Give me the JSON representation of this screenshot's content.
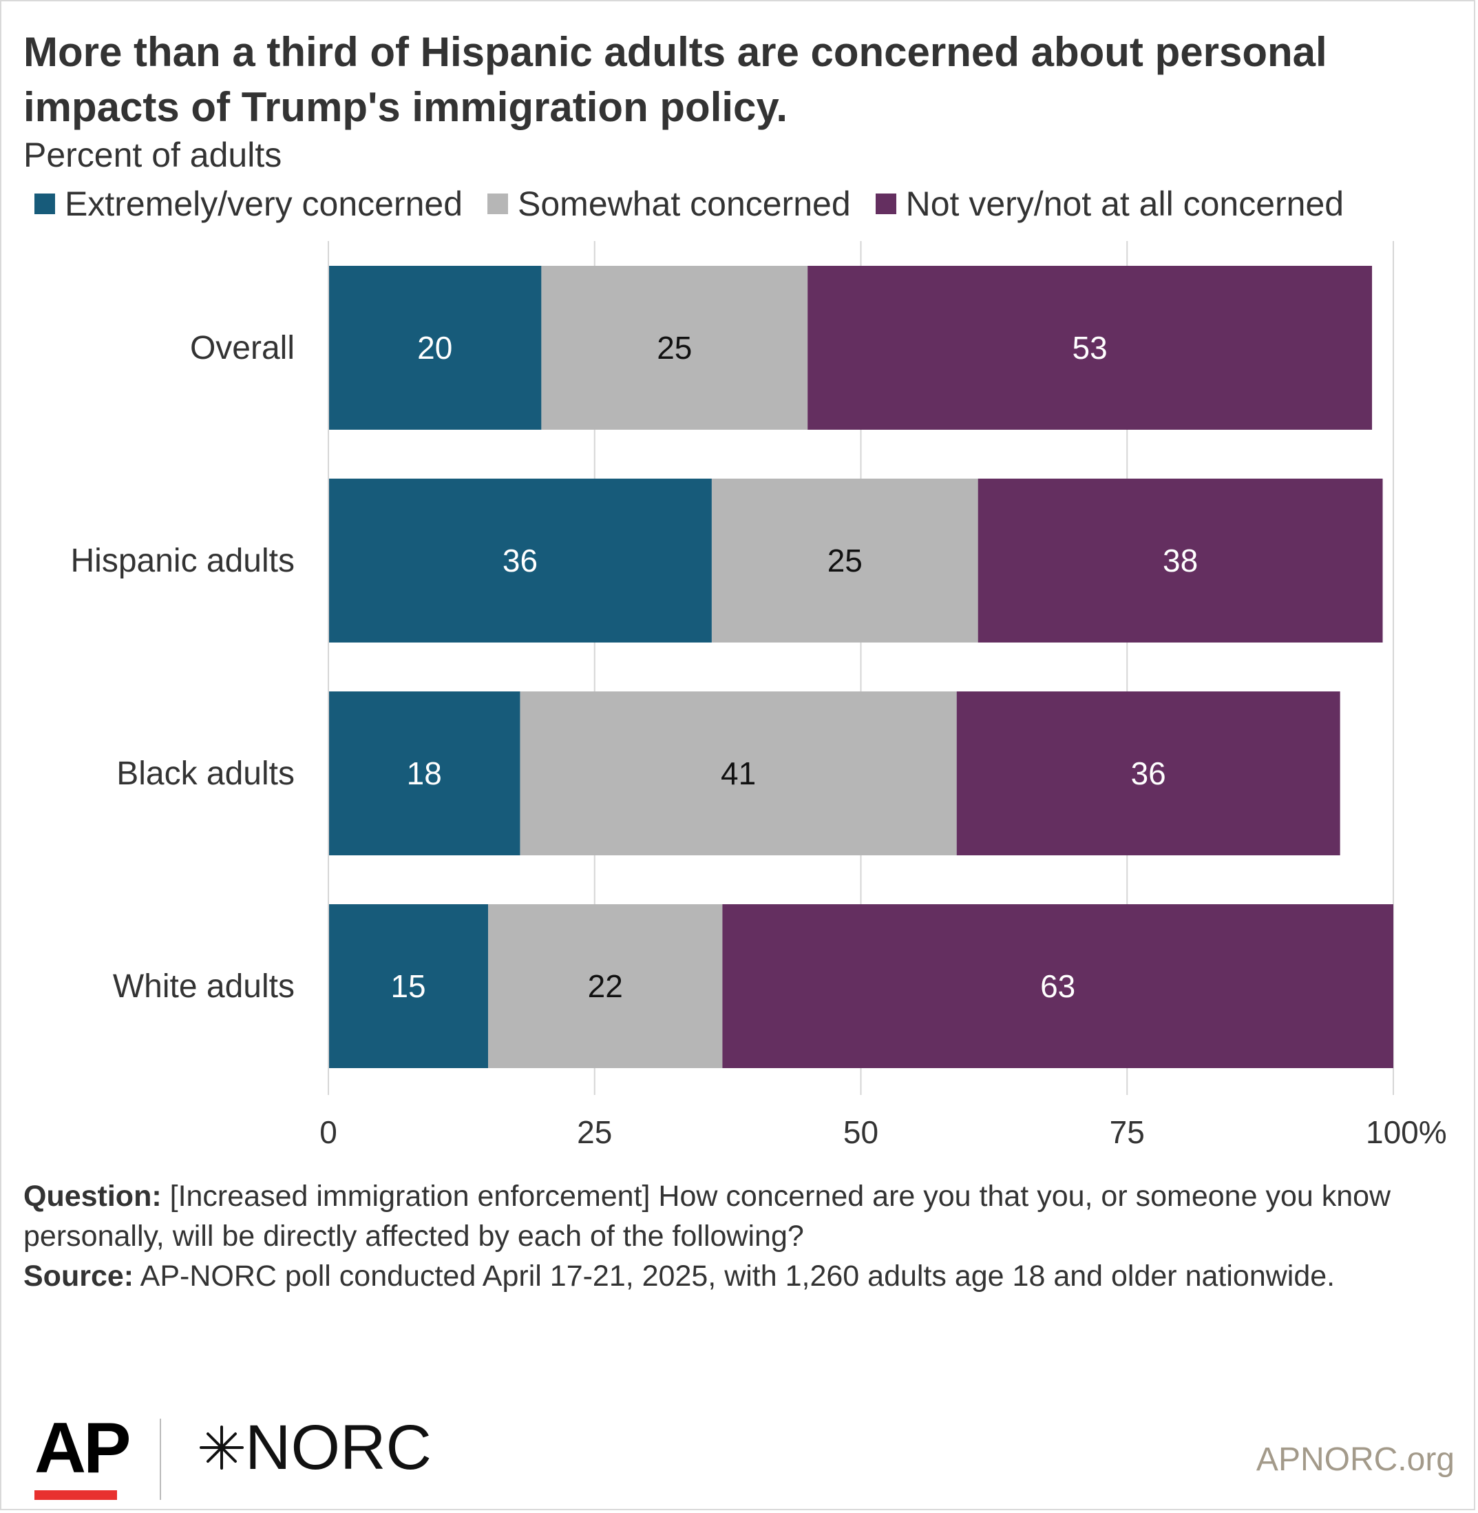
{
  "title": "More than a third of Hispanic adults are concerned about personal impacts of Trump's immigration policy.",
  "subtitle": "Percent of adults",
  "legend": [
    {
      "label": "Extremely/very concerned",
      "color": "#175b7a"
    },
    {
      "label": "Somewhat concerned",
      "color": "#b6b6b6"
    },
    {
      "label": "Not very/not at all concerned",
      "color": "#642f60"
    }
  ],
  "chart_data": {
    "type": "bar",
    "orientation": "horizontal",
    "stacked": true,
    "categories": [
      "Overall",
      "Hispanic adults",
      "Black adults",
      "White adults"
    ],
    "series": [
      {
        "name": "Extremely/very concerned",
        "values": [
          20,
          36,
          18,
          15
        ],
        "color": "#175b7a",
        "label_color": "#ffffff"
      },
      {
        "name": "Somewhat concerned",
        "values": [
          25,
          25,
          41,
          22
        ],
        "color": "#b6b6b6",
        "label_color": "#111111"
      },
      {
        "name": "Not very/not at all concerned",
        "values": [
          53,
          38,
          36,
          63
        ],
        "color": "#642f60",
        "label_color": "#ffffff"
      }
    ],
    "xlim": [
      0,
      100
    ],
    "xticks": [
      0,
      25,
      50,
      75,
      100
    ],
    "xtick_labels": [
      "0",
      "25",
      "50",
      "75",
      "100%"
    ],
    "grid": true,
    "legend_position": "top"
  },
  "footnote": {
    "question_label": "Question:",
    "question_text": " [Increased immigration enforcement] How concerned are you that you, or someone you know personally, will be directly affected by each of the following?",
    "source_label": "Source:",
    "source_text": " AP-NORC poll conducted April 17-21, 2025, with 1,260 adults age 18 and older nationwide."
  },
  "logos": {
    "ap": "AP",
    "norc": "NORC",
    "norc_mark_icon": "star-burst-icon"
  },
  "credit": "APNORC.org"
}
